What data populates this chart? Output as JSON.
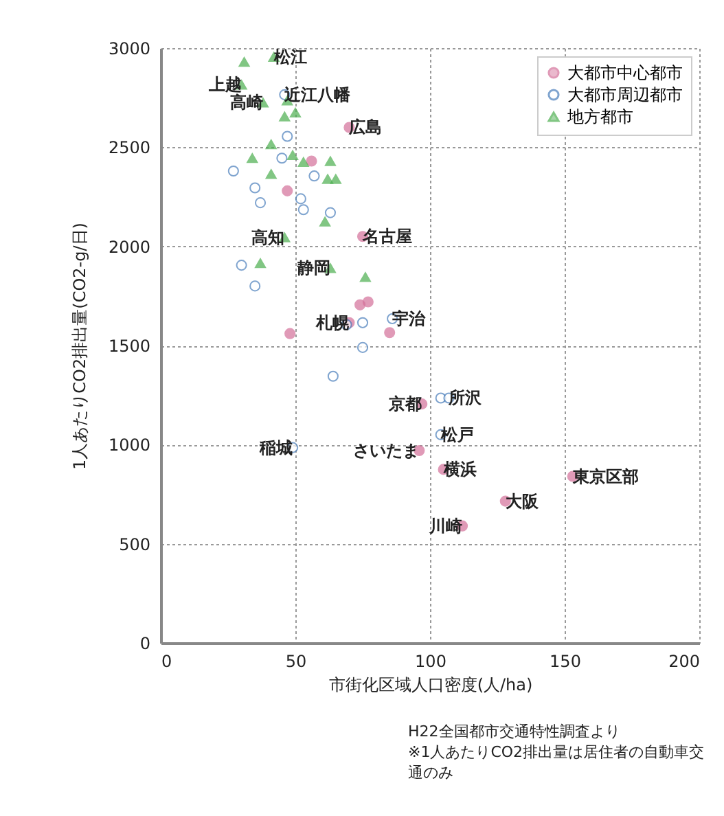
{
  "chart_data": {
    "type": "scatter",
    "xlabel": "市街化区域人口密度(人/ha)",
    "ylabel": "1人あたりCO2排出量(CO2-g/日)",
    "xlim": [
      0,
      200
    ],
    "xticks": [
      0,
      50,
      100,
      150,
      200
    ],
    "ylim": [
      0,
      3000
    ],
    "yticks": [
      0,
      500,
      1000,
      1500,
      2000,
      2500,
      3000
    ],
    "grid": true,
    "legend": "top right",
    "series": [
      {
        "name": "大都市中心都市",
        "color": "#d4709a",
        "marker": "circle",
        "x": [
          70,
          75,
          56,
          47,
          74,
          77,
          70,
          48,
          85,
          97,
          96,
          105,
          153,
          128,
          112
        ],
        "values": [
          2600,
          2050,
          2430,
          2280,
          1705,
          1720,
          1615,
          1560,
          1565,
          1205,
          970,
          875,
          840,
          715,
          590
        ]
      },
      {
        "name": "大都市周辺都市",
        "color": "#4a7ebb",
        "marker": "circle",
        "x": [
          46,
          47,
          45,
          27,
          35,
          37,
          52,
          53,
          63,
          57,
          30,
          35,
          75,
          86,
          75,
          64,
          104,
          107,
          104,
          49,
          69
        ],
        "values": [
          2765,
          2555,
          2445,
          2380,
          2295,
          2220,
          2240,
          2185,
          2170,
          2355,
          1905,
          1800,
          1615,
          1635,
          1490,
          1345,
          1235,
          1235,
          1050,
          985,
          1605
        ]
      },
      {
        "name": "地方都市",
        "color": "#4caf50",
        "marker": "triangle",
        "x": [
          31,
          42,
          30,
          38,
          47,
          46,
          50,
          41,
          34,
          49,
          53,
          63,
          41,
          62,
          65,
          61,
          46,
          63,
          76,
          37
        ],
        "values": [
          2930,
          2955,
          2815,
          2725,
          2735,
          2655,
          2675,
          2515,
          2445,
          2460,
          2425,
          2430,
          2365,
          2340,
          2340,
          2125,
          2045,
          1890,
          1845,
          1915
        ]
      }
    ],
    "annotations": [
      {
        "text": "松江",
        "x": 42,
        "y": 2955
      },
      {
        "text": "近江八幡",
        "x": 46,
        "y": 2765
      },
      {
        "text": "上越",
        "x": 30,
        "y": 2815
      },
      {
        "text": "高崎",
        "x": 38,
        "y": 2725
      },
      {
        "text": "広島",
        "x": 70,
        "y": 2600
      },
      {
        "text": "名古屋",
        "x": 75,
        "y": 2050
      },
      {
        "text": "高知",
        "x": 46,
        "y": 2045
      },
      {
        "text": "静岡",
        "x": 63,
        "y": 1890
      },
      {
        "text": "札幌",
        "x": 70,
        "y": 1615
      },
      {
        "text": "宇治",
        "x": 86,
        "y": 1635
      },
      {
        "text": "京都",
        "x": 97,
        "y": 1205
      },
      {
        "text": "所沢",
        "x": 107,
        "y": 1235
      },
      {
        "text": "松戸",
        "x": 104,
        "y": 1050
      },
      {
        "text": "稲城",
        "x": 49,
        "y": 985
      },
      {
        "text": "さいたま",
        "x": 96,
        "y": 970
      },
      {
        "text": "横浜",
        "x": 105,
        "y": 875
      },
      {
        "text": "東京区部",
        "x": 153,
        "y": 840
      },
      {
        "text": "大阪",
        "x": 128,
        "y": 715
      },
      {
        "text": "川崎",
        "x": 112,
        "y": 590
      },
      "H22全国都市交通特性調査より",
      "※1人あたりCO2排出量は居住者の自動車交通のみ"
    ]
  }
}
